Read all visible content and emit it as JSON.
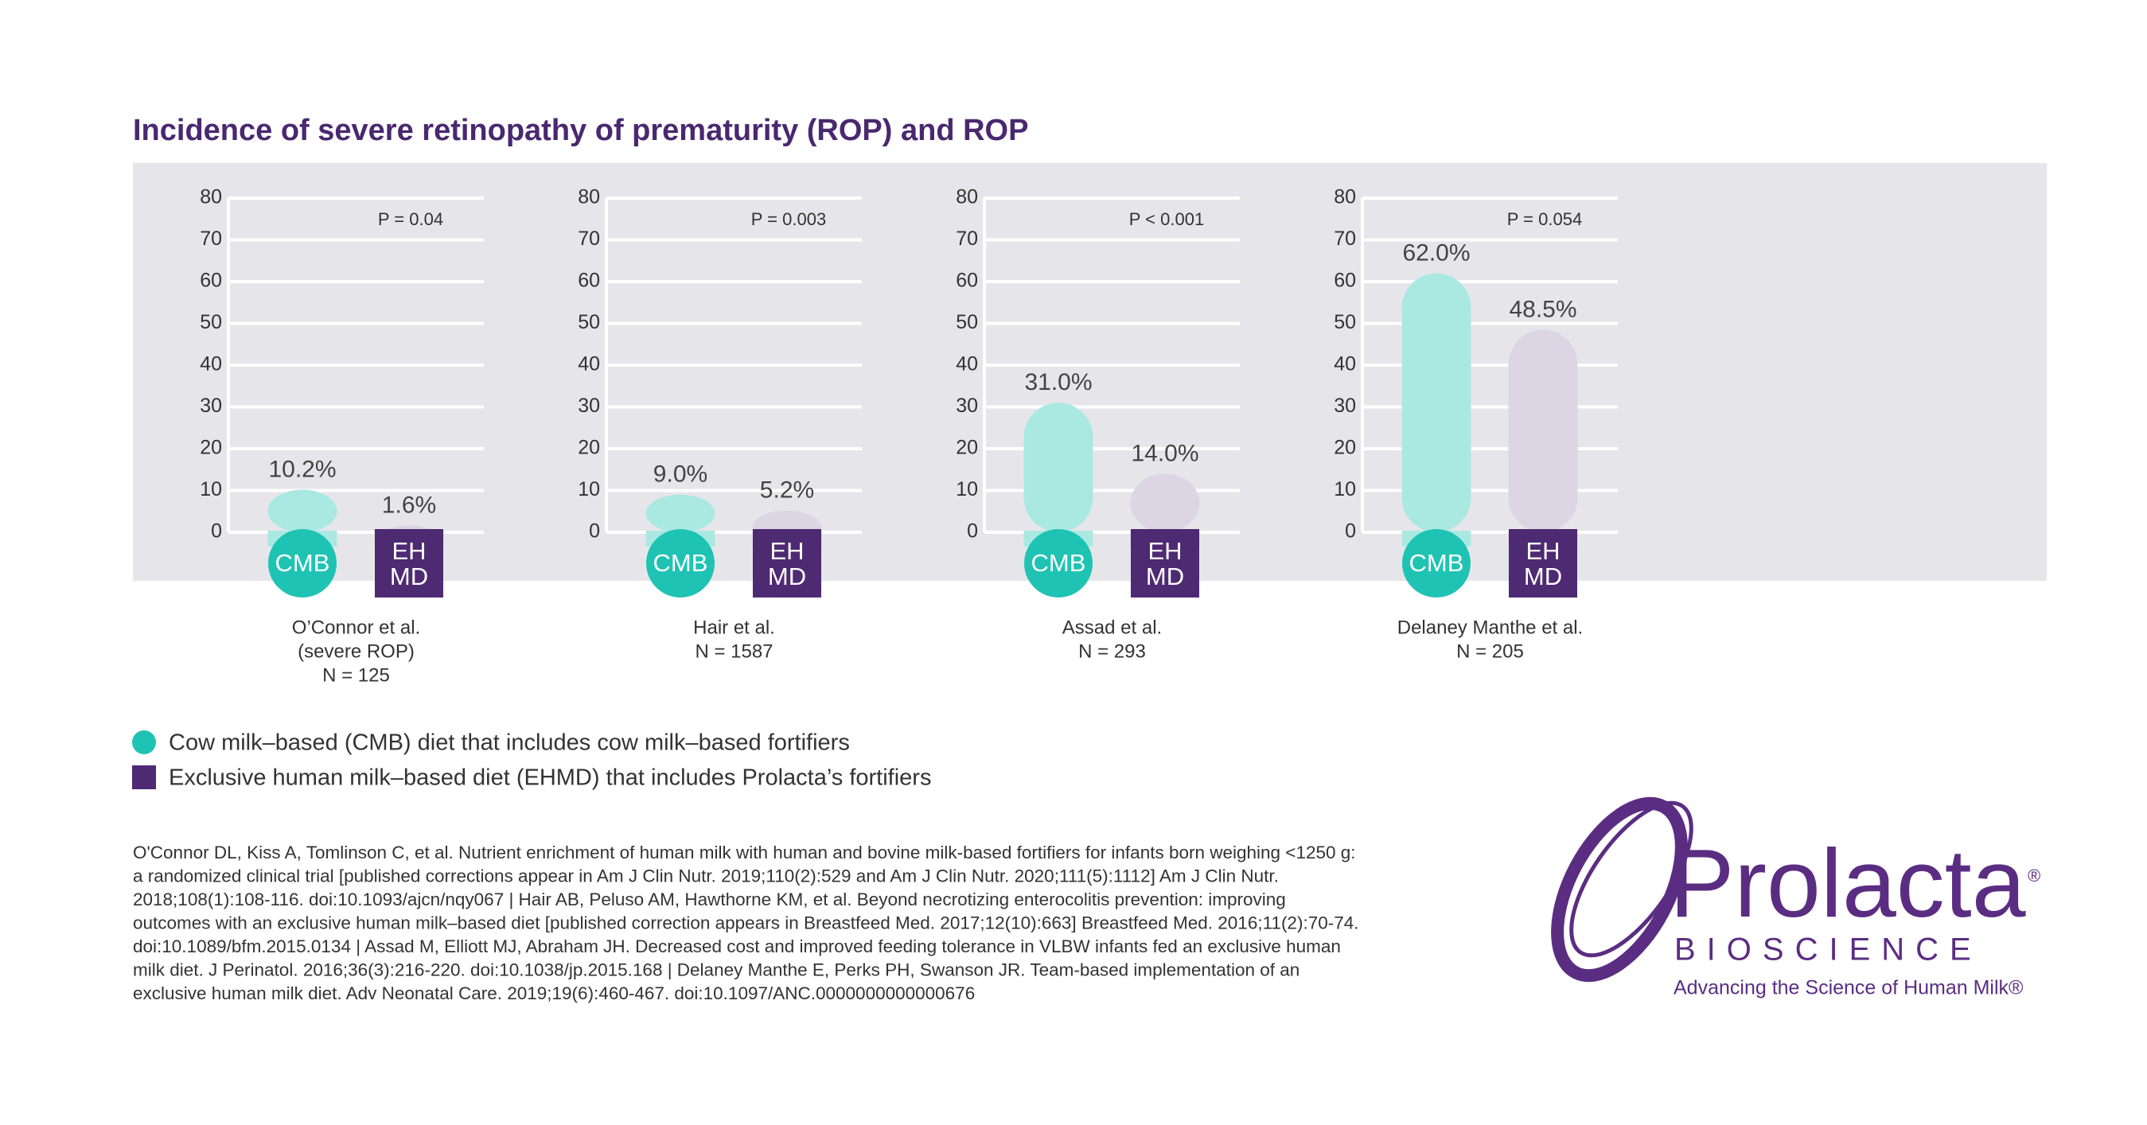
{
  "title": "Incidence of severe retinopathy of prematurity (ROP) and ROP",
  "chart_data": [
    {
      "type": "bar",
      "categories": [
        "CMB",
        "EH MD"
      ],
      "values": [
        10.2,
        1.6
      ],
      "value_labels": [
        "10.2%",
        "1.6%"
      ],
      "colors": [
        "#1fc3b3",
        "#4e2a72"
      ],
      "bar_colors": [
        "#a9e9e1",
        "#dcd5e3"
      ],
      "annotation": "P = 0.04",
      "caption": [
        "O’Connor et al.",
        "(severe ROP)",
        "N = 125"
      ],
      "ylim": [
        0,
        80
      ],
      "yticks": [
        0,
        10,
        20,
        30,
        40,
        50,
        60,
        70,
        80
      ],
      "grid": true
    },
    {
      "type": "bar",
      "categories": [
        "CMB",
        "EH MD"
      ],
      "values": [
        9.0,
        5.2
      ],
      "value_labels": [
        "9.0%",
        "5.2%"
      ],
      "colors": [
        "#1fc3b3",
        "#4e2a72"
      ],
      "bar_colors": [
        "#a9e9e1",
        "#dcd5e3"
      ],
      "annotation": "P = 0.003",
      "caption": [
        "Hair et al.",
        "N = 1587"
      ],
      "ylim": [
        0,
        80
      ],
      "yticks": [
        0,
        10,
        20,
        30,
        40,
        50,
        60,
        70,
        80
      ],
      "grid": true
    },
    {
      "type": "bar",
      "categories": [
        "CMB",
        "EH MD"
      ],
      "values": [
        31.0,
        14.0
      ],
      "value_labels": [
        "31.0%",
        "14.0%"
      ],
      "colors": [
        "#1fc3b3",
        "#4e2a72"
      ],
      "bar_colors": [
        "#a9e9e1",
        "#dcd5e3"
      ],
      "annotation": "P < 0.001",
      "caption": [
        "Assad et al.",
        "N = 293"
      ],
      "ylim": [
        0,
        80
      ],
      "yticks": [
        0,
        10,
        20,
        30,
        40,
        50,
        60,
        70,
        80
      ],
      "grid": true
    },
    {
      "type": "bar",
      "categories": [
        "CMB",
        "EH MD"
      ],
      "values": [
        62.0,
        48.5
      ],
      "value_labels": [
        "62.0%",
        "48.5%"
      ],
      "colors": [
        "#1fc3b3",
        "#4e2a72"
      ],
      "bar_colors": [
        "#a9e9e1",
        "#dcd5e3"
      ],
      "annotation": "P = 0.054",
      "caption": [
        "Delaney Manthe et al.",
        "N = 205"
      ],
      "ylim": [
        0,
        80
      ],
      "yticks": [
        0,
        10,
        20,
        30,
        40,
        50,
        60,
        70,
        80
      ],
      "grid": true
    }
  ],
  "legend": [
    {
      "label": "Cow milk–based (CMB) diet that includes cow milk–based fortifiers",
      "color": "#1fc3b3",
      "shape": "circle"
    },
    {
      "label": "Exclusive human milk–based diet (EHMD) that includes Prolacta’s fortifiers",
      "color": "#4e2a72",
      "shape": "square"
    }
  ],
  "references": [
    "O'Connor DL, Kiss A, Tomlinson C, et al. Nutrient enrichment of human milk with human and bovine milk-based fortifiers for infants born weighing <1250 g:",
    "a randomized clinical trial [published corrections appear in Am J Clin Nutr. 2019;110(2):529 and Am J Clin Nutr. 2020;111(5):1112] Am J Clin Nutr.",
    "2018;108(1):108-116. doi:10.1093/ajcn/nqy067 | Hair AB, Peluso AM, Hawthorne KM, et al. Beyond necrotizing enterocolitis prevention: improving",
    "outcomes with an exclusive human milk–based diet [published correction appears in Breastfeed Med. 2017;12(10):663] Breastfeed Med. 2016;11(2):70-74.",
    "doi:10.1089/bfm.2015.0134 | Assad M, Elliott MJ, Abraham JH. Decreased cost and improved feeding tolerance in VLBW infants fed an exclusive human",
    "milk diet. J Perinatol. 2016;36(3):216-220. doi:10.1038/jp.2015.168 | Delaney Manthe E, Perks PH, Swanson JR. Team-based implementation of an",
    "exclusive human milk diet. Adv Neonatal Care. 2019;19(6):460-467. doi:10.1097/ANC.0000000000000676"
  ],
  "logo": {
    "name": "Prolacta",
    "registered": "®",
    "subtitle": "BIOSCIENCE",
    "tagline": "Advancing the Science of Human Milk®"
  }
}
